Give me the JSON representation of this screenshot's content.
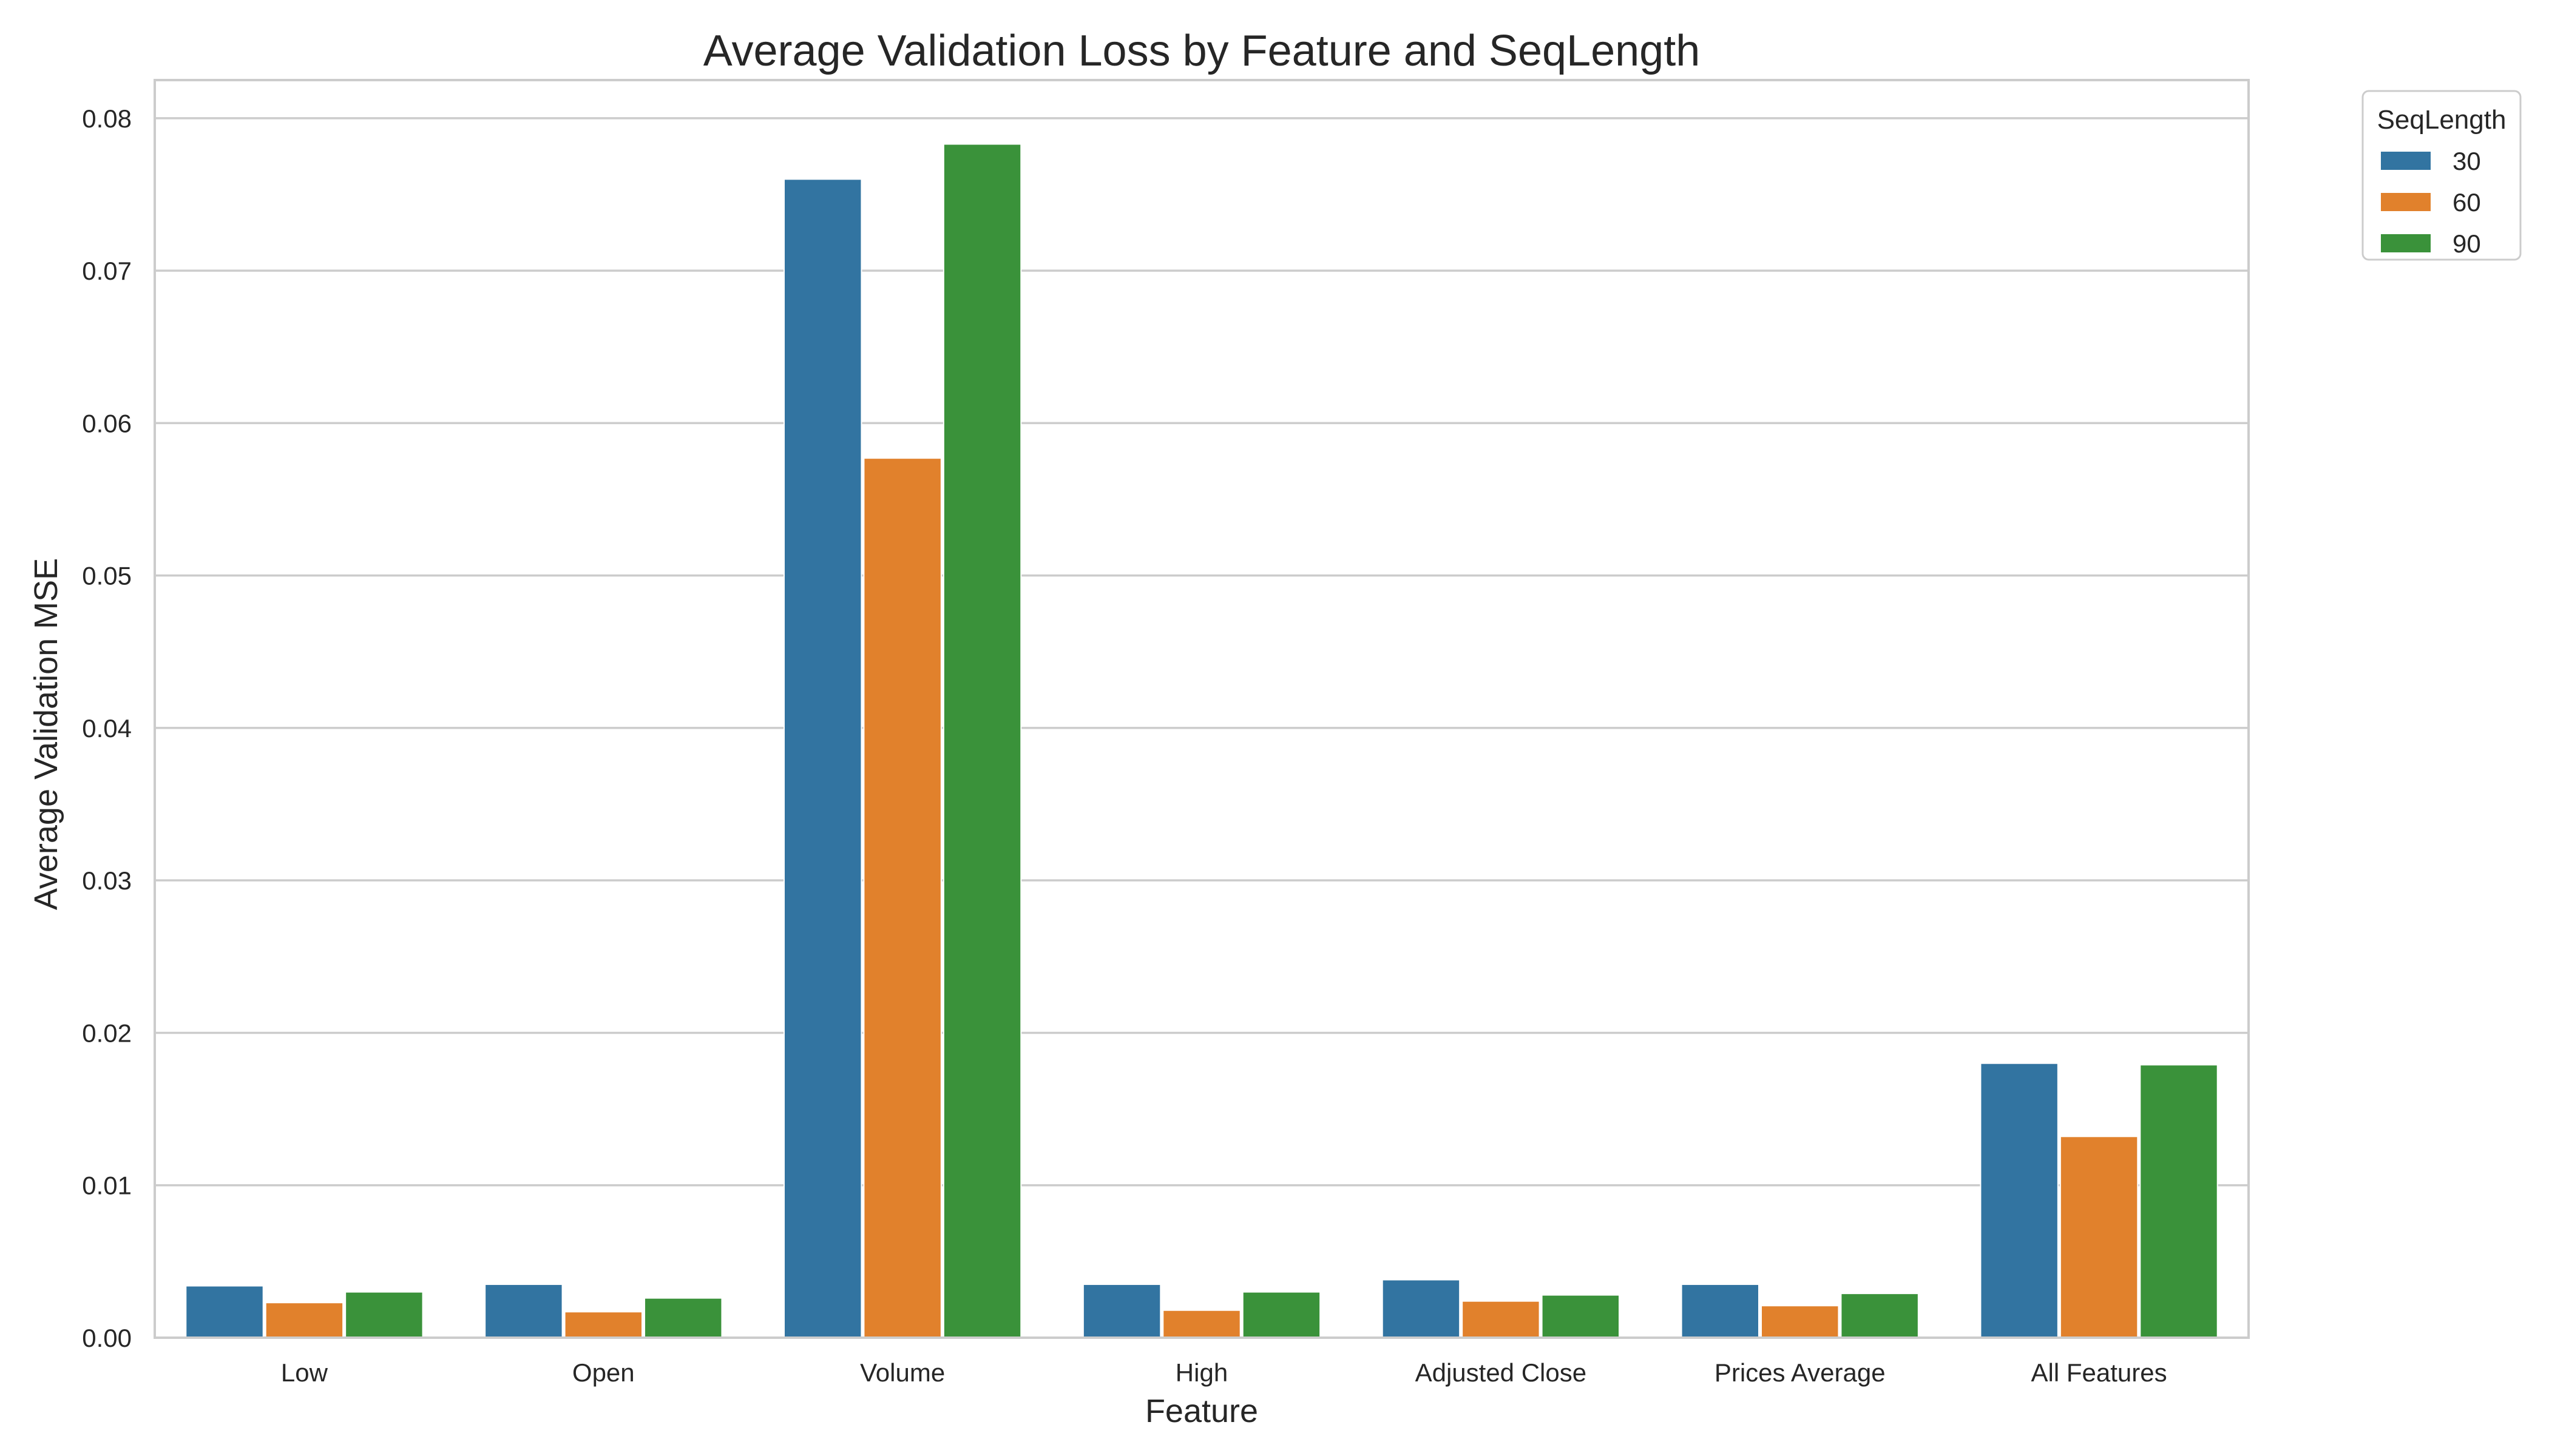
{
  "chart_data": {
    "type": "bar",
    "title": "Average Validation Loss by Feature and SeqLength",
    "xlabel": "Feature",
    "ylabel": "Average Validation MSE",
    "categories": [
      "Low",
      "Open",
      "Volume",
      "High",
      "Adjusted Close",
      "Prices Average",
      "All Features"
    ],
    "series": [
      {
        "name": "30",
        "color": "#3274a1",
        "values": [
          0.0034,
          0.0035,
          0.076,
          0.0035,
          0.0038,
          0.0035,
          0.018
        ]
      },
      {
        "name": "60",
        "color": "#e1812c",
        "values": [
          0.0023,
          0.0017,
          0.0577,
          0.0018,
          0.0024,
          0.0021,
          0.0132
        ]
      },
      {
        "name": "90",
        "color": "#3a923a",
        "values": [
          0.003,
          0.0026,
          0.0783,
          0.003,
          0.0028,
          0.0029,
          0.0179
        ]
      }
    ],
    "ylim": [
      0,
      0.0825
    ],
    "yticks": [
      "0.00",
      "0.01",
      "0.02",
      "0.03",
      "0.04",
      "0.05",
      "0.06",
      "0.07",
      "0.08"
    ],
    "grid": true,
    "legend": {
      "title": "SeqLength",
      "placement": "outside-top-right"
    }
  }
}
